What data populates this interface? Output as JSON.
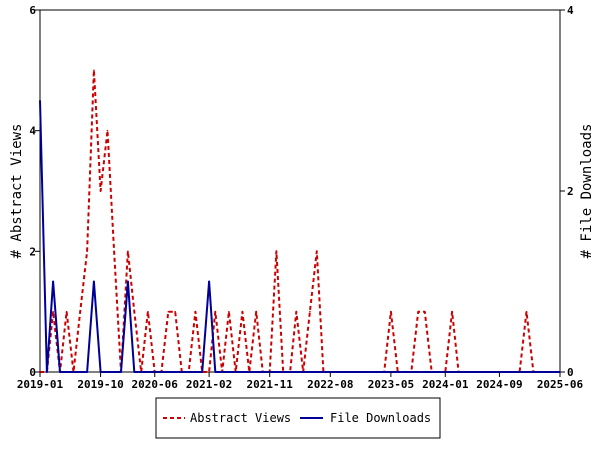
{
  "chart_data": {
    "type": "line",
    "x_axis": {
      "type": "date",
      "range": [
        "2019-01-01",
        "2025-06-01"
      ],
      "ticks": [
        "2019-01",
        "2019-10",
        "2020-06",
        "2021-02",
        "2021-11",
        "2022-08",
        "2023-05",
        "2024-01",
        "2024-09",
        "2025-06"
      ]
    },
    "y_left": {
      "label": "# Abstract Views",
      "range": [
        0,
        6
      ],
      "ticks": [
        "0",
        "2",
        "4",
        "6"
      ]
    },
    "y_right": {
      "label": "# File Downloads",
      "range": [
        0,
        4
      ],
      "ticks": [
        "0",
        "2",
        "4"
      ]
    },
    "grid": false,
    "legend_position": "bottom-center",
    "series": [
      {
        "name": "Abstract Views",
        "axis": "left",
        "color": "#cc0000",
        "style": "dashed",
        "points": [
          [
            "2019-01-01",
            0
          ],
          [
            "2019-02-01",
            0
          ],
          [
            "2019-03-01",
            1
          ],
          [
            "2019-04-01",
            0
          ],
          [
            "2019-05-01",
            1
          ],
          [
            "2019-06-01",
            0
          ],
          [
            "2019-07-01",
            1
          ],
          [
            "2019-08-01",
            2
          ],
          [
            "2019-09-01",
            5
          ],
          [
            "2019-10-01",
            3
          ],
          [
            "2019-11-01",
            4
          ],
          [
            "2019-12-01",
            2
          ],
          [
            "2020-01-01",
            0
          ],
          [
            "2020-02-01",
            2
          ],
          [
            "2020-03-01",
            1
          ],
          [
            "2020-04-01",
            0
          ],
          [
            "2020-05-01",
            1
          ],
          [
            "2020-06-01",
            0
          ],
          [
            "2020-07-01",
            0
          ],
          [
            "2020-08-01",
            1
          ],
          [
            "2020-09-01",
            1
          ],
          [
            "2020-10-01",
            0
          ],
          [
            "2020-11-01",
            0
          ],
          [
            "2020-12-01",
            1
          ],
          [
            "2021-01-01",
            0
          ],
          [
            "2021-02-01",
            0
          ],
          [
            "2021-03-01",
            1
          ],
          [
            "2021-04-01",
            0
          ],
          [
            "2021-05-01",
            1
          ],
          [
            "2021-06-01",
            0
          ],
          [
            "2021-07-01",
            1
          ],
          [
            "2021-08-01",
            0
          ],
          [
            "2021-09-01",
            1
          ],
          [
            "2021-10-01",
            0
          ],
          [
            "2021-11-01",
            0
          ],
          [
            "2021-12-01",
            2
          ],
          [
            "2022-01-01",
            0
          ],
          [
            "2022-02-01",
            0
          ],
          [
            "2022-03-01",
            1
          ],
          [
            "2022-04-01",
            0
          ],
          [
            "2022-05-01",
            1
          ],
          [
            "2022-06-01",
            2
          ],
          [
            "2022-07-01",
            0
          ],
          [
            "2022-08-01",
            0
          ],
          [
            "2022-09-01",
            0
          ],
          [
            "2022-10-01",
            0
          ],
          [
            "2022-11-01",
            0
          ],
          [
            "2022-12-01",
            0
          ],
          [
            "2023-01-01",
            0
          ],
          [
            "2023-02-01",
            0
          ],
          [
            "2023-03-01",
            0
          ],
          [
            "2023-04-01",
            0
          ],
          [
            "2023-05-01",
            1
          ],
          [
            "2023-06-01",
            0
          ],
          [
            "2023-07-01",
            0
          ],
          [
            "2023-08-01",
            0
          ],
          [
            "2023-09-01",
            1
          ],
          [
            "2023-10-01",
            1
          ],
          [
            "2023-11-01",
            0
          ],
          [
            "2023-12-01",
            0
          ],
          [
            "2024-01-01",
            0
          ],
          [
            "2024-02-01",
            1
          ],
          [
            "2024-03-01",
            0
          ],
          [
            "2024-04-01",
            0
          ],
          [
            "2024-05-01",
            0
          ],
          [
            "2024-06-01",
            0
          ],
          [
            "2024-07-01",
            0
          ],
          [
            "2024-08-01",
            0
          ],
          [
            "2024-09-01",
            0
          ],
          [
            "2024-10-01",
            0
          ],
          [
            "2024-11-01",
            0
          ],
          [
            "2024-12-01",
            0
          ],
          [
            "2025-01-01",
            1
          ],
          [
            "2025-02-01",
            0
          ],
          [
            "2025-03-01",
            0
          ],
          [
            "2025-04-01",
            0
          ],
          [
            "2025-05-01",
            0
          ],
          [
            "2025-06-01",
            0
          ]
        ]
      },
      {
        "name": "File Downloads",
        "axis": "right",
        "color": "#000099",
        "style": "solid",
        "points": [
          [
            "2019-01-01",
            3
          ],
          [
            "2019-02-01",
            0
          ],
          [
            "2019-03-01",
            1
          ],
          [
            "2019-04-01",
            0
          ],
          [
            "2019-05-01",
            0
          ],
          [
            "2019-06-01",
            0
          ],
          [
            "2019-07-01",
            0
          ],
          [
            "2019-08-01",
            0
          ],
          [
            "2019-09-01",
            1
          ],
          [
            "2019-10-01",
            0
          ],
          [
            "2019-11-01",
            0
          ],
          [
            "2019-12-01",
            0
          ],
          [
            "2020-01-01",
            0
          ],
          [
            "2020-02-01",
            1
          ],
          [
            "2020-03-01",
            0
          ],
          [
            "2020-04-01",
            0
          ],
          [
            "2020-05-01",
            0
          ],
          [
            "2020-06-01",
            0
          ],
          [
            "2020-07-01",
            0
          ],
          [
            "2020-08-01",
            0
          ],
          [
            "2020-09-01",
            0
          ],
          [
            "2020-10-01",
            0
          ],
          [
            "2020-11-01",
            0
          ],
          [
            "2020-12-01",
            0
          ],
          [
            "2021-01-01",
            0
          ],
          [
            "2021-02-01",
            1
          ],
          [
            "2021-03-01",
            0
          ],
          [
            "2021-04-01",
            0
          ],
          [
            "2021-05-01",
            0
          ],
          [
            "2021-06-01",
            0
          ],
          [
            "2021-07-01",
            0
          ],
          [
            "2021-08-01",
            0
          ],
          [
            "2021-09-01",
            0
          ],
          [
            "2021-10-01",
            0
          ],
          [
            "2021-11-01",
            0
          ],
          [
            "2021-12-01",
            0
          ],
          [
            "2022-01-01",
            0
          ],
          [
            "2022-02-01",
            0
          ],
          [
            "2022-03-01",
            0
          ],
          [
            "2022-04-01",
            0
          ],
          [
            "2022-05-01",
            0
          ],
          [
            "2022-06-01",
            0
          ],
          [
            "2022-07-01",
            0
          ],
          [
            "2022-08-01",
            0
          ],
          [
            "2022-09-01",
            0
          ],
          [
            "2022-10-01",
            0
          ],
          [
            "2022-11-01",
            0
          ],
          [
            "2022-12-01",
            0
          ],
          [
            "2023-01-01",
            0
          ],
          [
            "2023-02-01",
            0
          ],
          [
            "2023-03-01",
            0
          ],
          [
            "2023-04-01",
            0
          ],
          [
            "2023-05-01",
            0
          ],
          [
            "2023-06-01",
            0
          ],
          [
            "2023-07-01",
            0
          ],
          [
            "2023-08-01",
            0
          ],
          [
            "2023-09-01",
            0
          ],
          [
            "2023-10-01",
            0
          ],
          [
            "2023-11-01",
            0
          ],
          [
            "2023-12-01",
            0
          ],
          [
            "2024-01-01",
            0
          ],
          [
            "2024-02-01",
            0
          ],
          [
            "2024-03-01",
            0
          ],
          [
            "2024-04-01",
            0
          ],
          [
            "2024-05-01",
            0
          ],
          [
            "2024-06-01",
            0
          ],
          [
            "2024-07-01",
            0
          ],
          [
            "2024-08-01",
            0
          ],
          [
            "2024-09-01",
            0
          ],
          [
            "2024-10-01",
            0
          ],
          [
            "2024-11-01",
            0
          ],
          [
            "2024-12-01",
            0
          ],
          [
            "2025-01-01",
            0
          ],
          [
            "2025-02-01",
            0
          ],
          [
            "2025-03-01",
            0
          ],
          [
            "2025-04-01",
            0
          ],
          [
            "2025-05-01",
            0
          ],
          [
            "2025-06-01",
            0
          ]
        ]
      }
    ]
  }
}
